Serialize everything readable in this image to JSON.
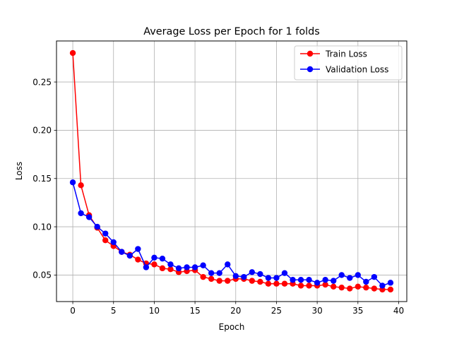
{
  "chart_data": {
    "type": "line",
    "title": "Average Loss per Epoch for 1 folds",
    "xlabel": "Epoch",
    "ylabel": "Loss",
    "xlim": [
      -2,
      41
    ],
    "ylim": [
      0.0225,
      0.2925
    ],
    "xticks": [
      0,
      5,
      10,
      15,
      20,
      25,
      30,
      35,
      40
    ],
    "yticks": [
      0.05,
      0.1,
      0.15,
      0.2,
      0.25
    ],
    "xtick_labels": [
      "0",
      "5",
      "10",
      "15",
      "20",
      "25",
      "30",
      "35",
      "40"
    ],
    "ytick_labels": [
      "0.05",
      "0.10",
      "0.15",
      "0.20",
      "0.25"
    ],
    "grid": true,
    "legend_position": "top-right",
    "x": [
      0,
      1,
      2,
      3,
      4,
      5,
      6,
      7,
      8,
      9,
      10,
      11,
      12,
      13,
      14,
      15,
      16,
      17,
      18,
      19,
      20,
      21,
      22,
      23,
      24,
      25,
      26,
      27,
      28,
      29,
      30,
      31,
      32,
      33,
      34,
      35,
      36,
      37,
      38,
      39
    ],
    "series": [
      {
        "name": "Train Loss",
        "color": "#ff0000",
        "values": [
          0.28,
          0.143,
          0.112,
          0.099,
          0.086,
          0.08,
          0.074,
          0.071,
          0.066,
          0.062,
          0.061,
          0.057,
          0.056,
          0.053,
          0.054,
          0.055,
          0.048,
          0.046,
          0.044,
          0.044,
          0.046,
          0.046,
          0.044,
          0.043,
          0.041,
          0.041,
          0.041,
          0.041,
          0.039,
          0.039,
          0.039,
          0.04,
          0.038,
          0.037,
          0.036,
          0.038,
          0.037,
          0.036,
          0.035,
          0.035
        ]
      },
      {
        "name": "Validation Loss",
        "color": "#0000ff",
        "values": [
          0.146,
          0.114,
          0.11,
          0.1,
          0.093,
          0.084,
          0.074,
          0.07,
          0.077,
          0.058,
          0.068,
          0.067,
          0.061,
          0.057,
          0.058,
          0.058,
          0.06,
          0.052,
          0.052,
          0.061,
          0.049,
          0.048,
          0.053,
          0.051,
          0.047,
          0.047,
          0.052,
          0.045,
          0.045,
          0.045,
          0.042,
          0.045,
          0.044,
          0.05,
          0.047,
          0.05,
          0.043,
          0.048,
          0.039,
          0.042
        ]
      }
    ]
  }
}
